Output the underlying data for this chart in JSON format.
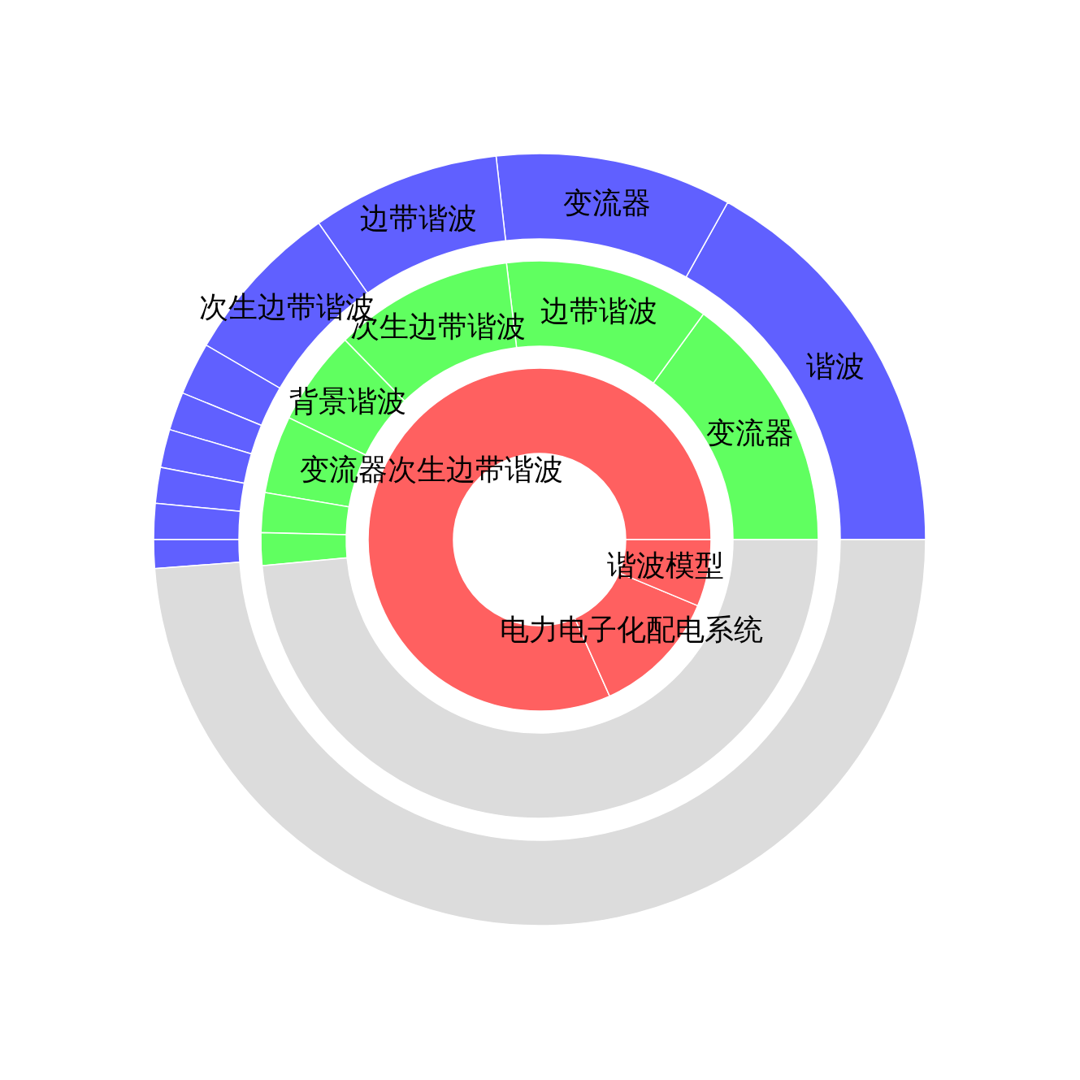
{
  "chart_data": [
    {
      "type": "donut",
      "categories": [
        "变流器次生边带谐波",
        "电力电子化配电系统",
        "谐波模型"
      ],
      "values": [
        81.7,
        12.0,
        6.3
      ],
      "colors": [
        "#ff6060",
        "#ff6060",
        "#ff6060"
      ]
    },
    {
      "type": "donut",
      "categories": [
        "变流器",
        "边带谐波",
        "次生边带谐波",
        "背景谐波",
        null,
        null,
        null,
        null
      ],
      "values": [
        15.0,
        11.9,
        10.4,
        5.5,
        4.5,
        2.3,
        1.9,
        48.5
      ],
      "colors": [
        "#60ff60",
        "#60ff60",
        "#60ff60",
        "#60ff60",
        "#60ff60",
        "#60ff60",
        "#60ff60",
        "#dcdcdc"
      ]
    },
    {
      "type": "donut",
      "categories": [
        "谐波",
        "变流器",
        "边带谐波",
        "次生边带谐波",
        null,
        null,
        null,
        null,
        null,
        null,
        null
      ],
      "values": [
        16.9,
        9.9,
        7.9,
        6.9,
        2.2,
        1.6,
        1.6,
        1.5,
        1.5,
        1.2,
        48.8
      ],
      "colors": [
        "#6060ff",
        "#6060ff",
        "#6060ff",
        "#6060ff",
        "#6060ff",
        "#6060ff",
        "#6060ff",
        "#6060ff",
        "#6060ff",
        "#6060ff",
        "#dcdcdc"
      ]
    }
  ]
}
